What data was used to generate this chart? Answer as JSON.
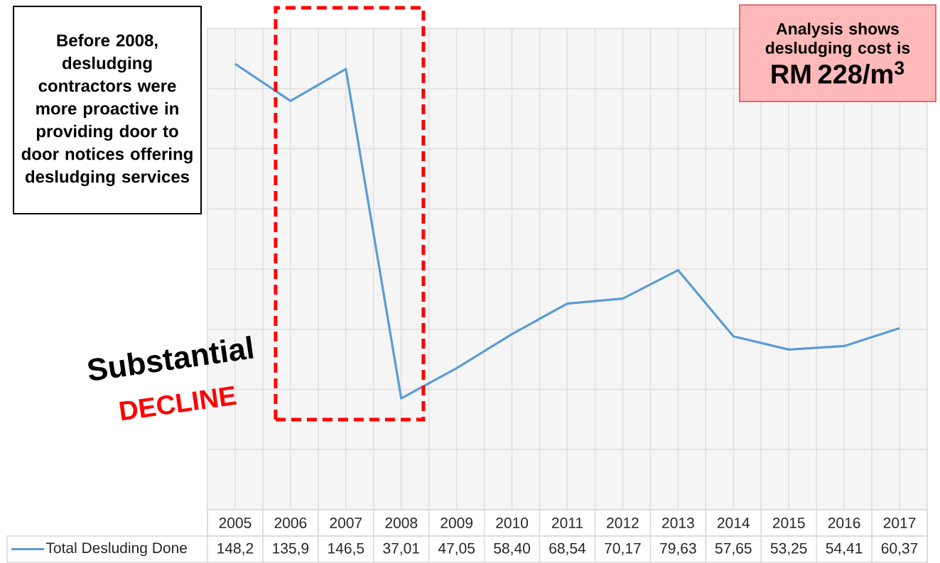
{
  "chart_data": {
    "type": "line",
    "categories": [
      "2005",
      "2006",
      "2007",
      "2008",
      "2009",
      "2010",
      "2011",
      "2012",
      "2013",
      "2014",
      "2015",
      "2016",
      "2017"
    ],
    "series": [
      {
        "name": "Total Desluding Done",
        "color": "#5b9bd5",
        "values": [
          148.2,
          135.9,
          146.5,
          37.01,
          47.05,
          58.4,
          68.54,
          70.17,
          79.63,
          57.65,
          53.25,
          54.41,
          60.37
        ],
        "value_labels": [
          "148,2",
          "135,9",
          "146,5",
          "37,01",
          "47,05",
          "58,40",
          "68,54",
          "70,17",
          "79,63",
          "57,65",
          "53,25",
          "54,41",
          "60,37"
        ]
      }
    ],
    "ylim": [
      0,
      160
    ],
    "yticks": [
      {
        "value": 0,
        "label": null
      },
      {
        "value": 20,
        "label": null
      },
      {
        "value": 40,
        "label": null
      },
      {
        "value": 60,
        "label": null
      },
      {
        "value": 80,
        "label": null
      },
      {
        "value": 100,
        "label": null
      },
      {
        "value": 120,
        "label": null
      },
      {
        "value": 140,
        "label": null
      },
      {
        "value": 160,
        "label": null
      }
    ],
    "grid": true,
    "legend": "bottom",
    "tick_labels": "x",
    "annotations": [
      "Before 2008, desludging contractors were more proactive in providing door to door notices offering desludging services",
      "Analysis shows desludging cost is",
      "RM 228/m$^{3}$",
      "Substantial",
      "DECLINE"
    ]
  }
}
